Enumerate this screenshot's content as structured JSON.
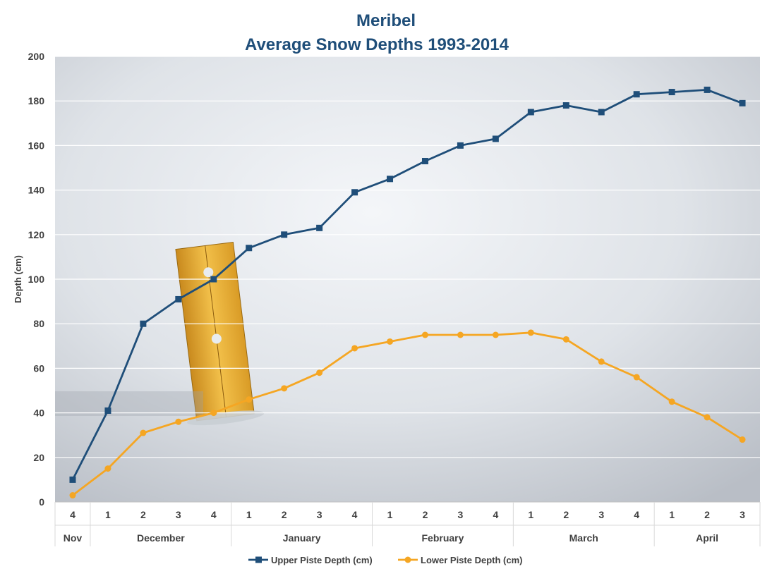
{
  "chart_data": {
    "type": "line",
    "title": "Meribel",
    "subtitle": "Average Snow Depths 1993-2014",
    "ylabel": "Depth (cm)",
    "xlabel": "",
    "ylim": [
      0,
      200
    ],
    "yticks": [
      0,
      20,
      40,
      60,
      80,
      100,
      120,
      140,
      160,
      180,
      200
    ],
    "grid": true,
    "legend": "bottom",
    "categories": [
      "4",
      "1",
      "2",
      "3",
      "4",
      "1",
      "2",
      "3",
      "4",
      "1",
      "2",
      "3",
      "4",
      "1",
      "2",
      "3",
      "4",
      "1",
      "2",
      "3"
    ],
    "months": [
      {
        "name": "Nov",
        "count": 1
      },
      {
        "name": "December",
        "count": 4
      },
      {
        "name": "January",
        "count": 4
      },
      {
        "name": "February",
        "count": 4
      },
      {
        "name": "March",
        "count": 4
      },
      {
        "name": "April",
        "count": 3
      }
    ],
    "series": [
      {
        "name": "Upper Piste Depth (cm)",
        "color": "#1F4E79",
        "marker": "square",
        "values": [
          10,
          41,
          80,
          91,
          100,
          114,
          120,
          123,
          139,
          145,
          153,
          160,
          163,
          175,
          178,
          175,
          183,
          184,
          185,
          179
        ]
      },
      {
        "name": "Lower Piste Depth (cm)",
        "color": "#F5A623",
        "marker": "circle",
        "values": [
          3,
          15,
          31,
          36,
          40,
          46,
          51,
          58,
          69,
          72,
          75,
          75,
          75,
          76,
          73,
          63,
          56,
          45,
          38,
          28
        ]
      }
    ]
  }
}
